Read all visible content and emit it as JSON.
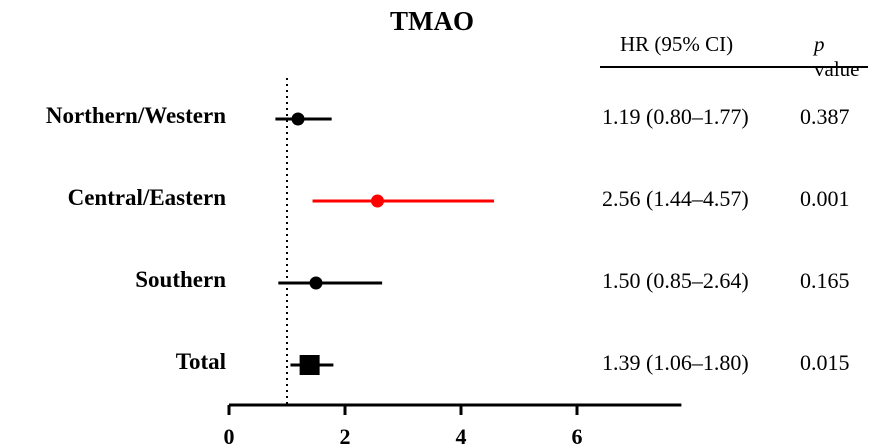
{
  "chart_data": {
    "type": "forest",
    "title": "TMAO",
    "header": {
      "hr_label": "HR (95% CI)",
      "p_label_italic": "p",
      "p_label_rest": " value"
    },
    "reference_line": 1,
    "xlim": [
      0,
      7.8
    ],
    "xticks": [
      0,
      2,
      4,
      6
    ],
    "rows": [
      {
        "label": "Northern/Western",
        "hr": 1.19,
        "lo": 0.8,
        "hi": 1.77,
        "hr_text": "1.19 (0.80–1.77)",
        "p_text": "0.387",
        "marker": "circle",
        "color": "#000000"
      },
      {
        "label": "Central/Eastern",
        "hr": 2.56,
        "lo": 1.44,
        "hi": 4.57,
        "hr_text": "2.56 (1.44–4.57)",
        "p_text": "0.001",
        "marker": "circle",
        "color": "#ff0000"
      },
      {
        "label": "Southern",
        "hr": 1.5,
        "lo": 0.85,
        "hi": 2.64,
        "hr_text": "1.50 (0.85–2.64)",
        "p_text": "0.165",
        "marker": "circle",
        "color": "#000000"
      },
      {
        "label": "Total",
        "hr": 1.39,
        "lo": 1.06,
        "hi": 1.8,
        "hr_text": "1.39 (1.06–1.80)",
        "p_text": "0.015",
        "marker": "square",
        "color": "#000000"
      }
    ]
  }
}
